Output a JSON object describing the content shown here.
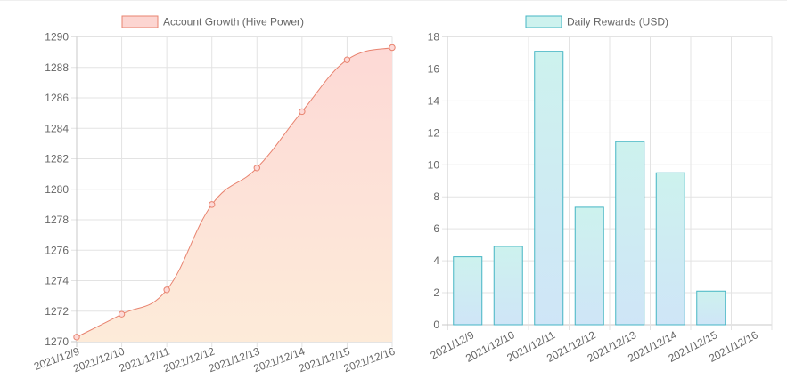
{
  "chart_data": [
    {
      "type": "area",
      "title": "",
      "legend": "Account Growth (Hive Power)",
      "legend_placement": "top",
      "categories": [
        "2021/12/9",
        "2021/12/10",
        "2021/12/11",
        "2021/12/12",
        "2021/12/13",
        "2021/12/14",
        "2021/12/15",
        "2021/12/16"
      ],
      "values": [
        1270.3,
        1271.8,
        1273.4,
        1279.0,
        1281.4,
        1285.1,
        1288.5,
        1289.3
      ],
      "ylim": [
        1270,
        1290
      ],
      "yticks": [
        1270,
        1272,
        1274,
        1276,
        1278,
        1280,
        1282,
        1284,
        1286,
        1288,
        1290
      ],
      "xlabel": "",
      "ylabel": "",
      "grid": true,
      "colors": {
        "line": "#e8836f",
        "point": "#e8836f",
        "fill_top": "#fdd9d6",
        "fill_bottom": "#fdebd9",
        "legend_fill": "#fcd5d1",
        "legend_border": "#e8836f"
      }
    },
    {
      "type": "bar",
      "title": "",
      "legend": "Daily Rewards (USD)",
      "legend_placement": "top",
      "categories": [
        "2021/12/9",
        "2021/12/10",
        "2021/12/11",
        "2021/12/12",
        "2021/12/13",
        "2021/12/14",
        "2021/12/15",
        "2021/12/16"
      ],
      "values": [
        4.25,
        4.9,
        17.1,
        7.35,
        11.45,
        9.5,
        2.1,
        0
      ],
      "ylim": [
        0,
        18
      ],
      "yticks": [
        0,
        2,
        4,
        6,
        8,
        10,
        12,
        14,
        16,
        18
      ],
      "xlabel": "",
      "ylabel": "",
      "grid": true,
      "colors": {
        "bar_top": "#cdf2ee",
        "bar_bottom": "#cfe5f7",
        "bar_border": "#45b5c4",
        "legend_fill": "#cdf2ee",
        "legend_border": "#45b5c4"
      }
    }
  ]
}
